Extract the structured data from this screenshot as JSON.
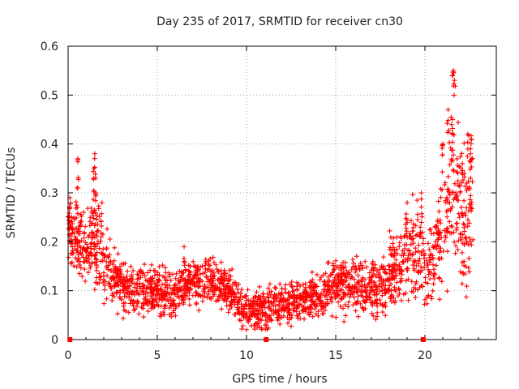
{
  "chart_data": {
    "type": "scatter",
    "title": "Day 235 of 2017, SRMTID for receiver cn30",
    "xlabel": "GPS time / hours",
    "ylabel": "SRMTID / TECUs",
    "xlim": [
      0,
      24
    ],
    "ylim": [
      0,
      0.6
    ],
    "xticks": [
      0,
      5,
      10,
      15,
      20
    ],
    "yticks": [
      0,
      0.1,
      0.2,
      0.3,
      0.4,
      0.5,
      0.6
    ],
    "xtick_labels": [
      "0",
      "5",
      "10",
      "15",
      "20"
    ],
    "ytick_labels": [
      "0",
      "0.1",
      "0.2",
      "0.3",
      "0.4",
      "0.5",
      "0.6"
    ],
    "grid": true,
    "marker": "+",
    "color": "#ff0000",
    "gap_markers_x": [
      0.1,
      11.1,
      19.9
    ],
    "series": [
      {
        "name": "SRMTID",
        "trend": {
          "x": [
            0.0,
            0.5,
            1.0,
            1.5,
            2.0,
            2.5,
            3.0,
            4.0,
            5.0,
            6.0,
            7.0,
            8.0,
            9.0,
            10.0,
            11.0,
            12.0,
            13.0,
            14.0,
            15.0,
            16.0,
            17.0,
            18.0,
            18.5,
            19.0,
            19.5,
            20.0,
            20.5,
            21.0,
            21.5,
            22.0,
            22.7
          ],
          "y": [
            0.24,
            0.2,
            0.18,
            0.21,
            0.16,
            0.13,
            0.11,
            0.1,
            0.1,
            0.09,
            0.12,
            0.12,
            0.1,
            0.06,
            0.06,
            0.07,
            0.08,
            0.09,
            0.11,
            0.11,
            0.1,
            0.13,
            0.15,
            0.17,
            0.18,
            0.16,
            0.17,
            0.24,
            0.32,
            0.26,
            0.26
          ]
        },
        "spread": {
          "x": [
            0.0,
            1.5,
            3.0,
            10.0,
            15.0,
            18.5,
            20.5,
            21.5,
            22.7
          ],
          "y": [
            0.06,
            0.07,
            0.04,
            0.03,
            0.04,
            0.06,
            0.08,
            0.12,
            0.1
          ]
        },
        "peaks": [
          {
            "x": 0.1,
            "y": 0.29
          },
          {
            "x": 0.55,
            "y": 0.37
          },
          {
            "x": 0.5,
            "y": 0.31
          },
          {
            "x": 1.5,
            "y": 0.38
          },
          {
            "x": 1.45,
            "y": 0.35
          },
          {
            "x": 1.55,
            "y": 0.33
          },
          {
            "x": 1.9,
            "y": 0.28
          },
          {
            "x": 6.5,
            "y": 0.19
          },
          {
            "x": 19.0,
            "y": 0.28
          },
          {
            "x": 19.8,
            "y": 0.3
          },
          {
            "x": 21.0,
            "y": 0.4
          },
          {
            "x": 21.3,
            "y": 0.47
          },
          {
            "x": 21.55,
            "y": 0.45
          },
          {
            "x": 21.6,
            "y": 0.55
          },
          {
            "x": 21.65,
            "y": 0.53
          },
          {
            "x": 22.1,
            "y": 0.36
          },
          {
            "x": 22.4,
            "y": 0.42
          },
          {
            "x": 22.6,
            "y": 0.41
          },
          {
            "x": 22.55,
            "y": 0.38
          }
        ]
      }
    ]
  }
}
